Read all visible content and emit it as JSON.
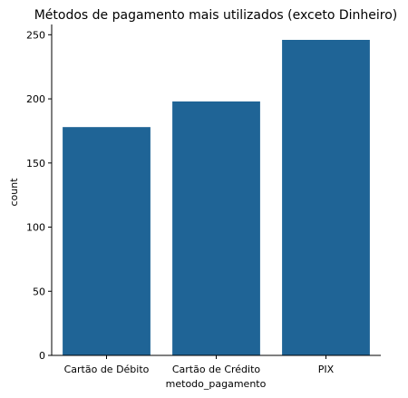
{
  "chart_data": {
    "type": "bar",
    "title": "Métodos de pagamento mais utilizados (exceto Dinheiro)",
    "xlabel": "metodo_pagamento",
    "ylabel": "count",
    "categories": [
      "Cartão de Débito",
      "Cartão de Crédito",
      "PIX"
    ],
    "values": [
      178,
      198,
      246
    ],
    "ylim": [
      0,
      258
    ],
    "yticks": [
      "0",
      "50",
      "100",
      "150",
      "200",
      "250"
    ],
    "grid": false,
    "legend": "none",
    "bar_color": "#1f6496"
  }
}
